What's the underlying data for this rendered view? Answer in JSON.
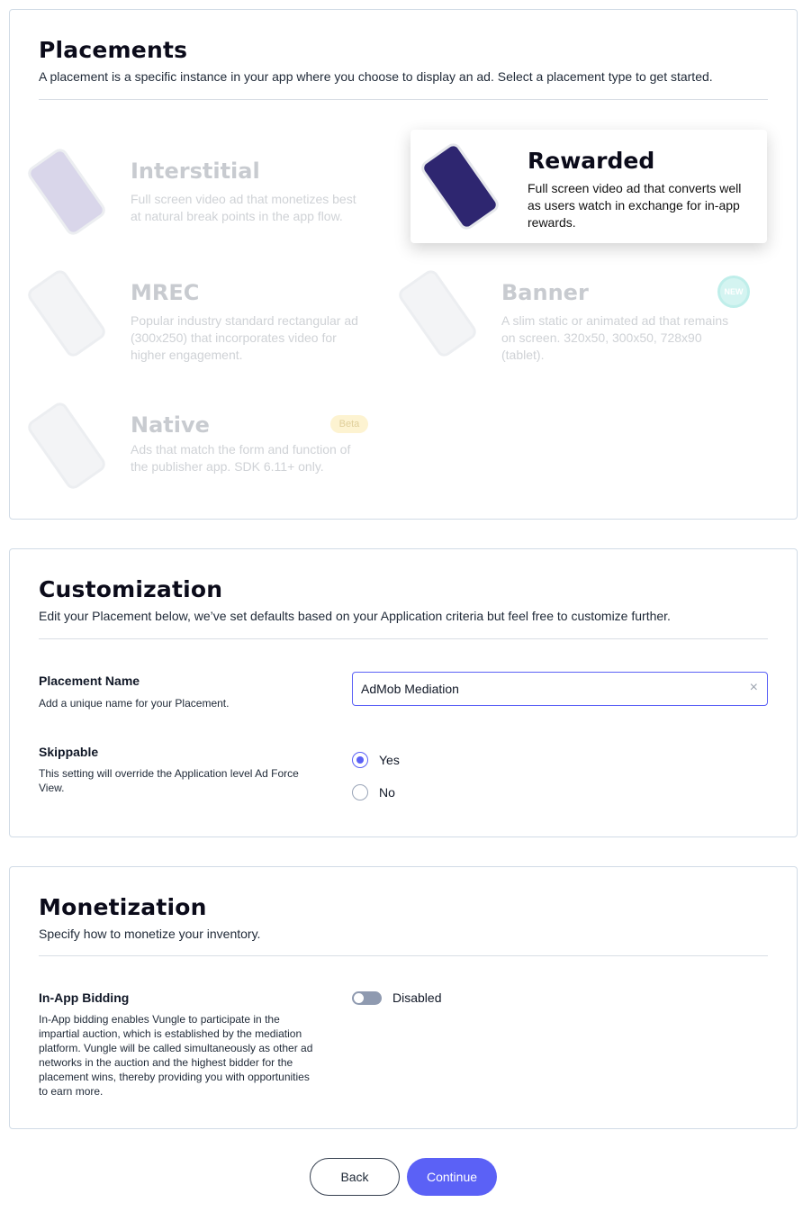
{
  "placements": {
    "title": "Placements",
    "subtitle": "A placement is a specific instance in your app where you choose to display an ad. Select a placement type to get started.",
    "types": [
      {
        "name": "Interstitial",
        "description": "Full screen video ad that monetizes best at natural break points in the app flow."
      },
      {
        "name": "Rewarded",
        "description": "Full screen video ad that converts well as users watch in exchange for in-app rewards.",
        "selected": true
      },
      {
        "name": "MREC",
        "description": "Popular industry standard rectangular ad (300x250) that incorporates video for higher engagement."
      },
      {
        "name": "Banner",
        "description": "A slim static or animated ad that remains on screen. 320x50, 300x50, 728x90 (tablet).",
        "badge": "NEW"
      },
      {
        "name": "Native",
        "description": "Ads that match the form and function of the publisher app. SDK 6.11+ only.",
        "badge": "Beta"
      }
    ]
  },
  "customization": {
    "title": "Customization",
    "subtitle": "Edit your Placement below, we’ve set defaults based on your Application criteria but feel free to customize further.",
    "placement_name_label": "Placement Name",
    "placement_name_hint": "Add a unique name for your Placement.",
    "placement_name_value": "AdMob Mediation",
    "skippable_label": "Skippable",
    "skippable_hint": "This setting will override the Application level Ad Force View.",
    "options": [
      "Yes",
      "No"
    ],
    "selected": "Yes"
  },
  "monetization": {
    "title": "Monetization",
    "subtitle": "Specify how to monetize your inventory.",
    "bidding_label": "In-App Bidding",
    "bidding_hint": "In-App bidding enables Vungle to participate in the impartial auction, which is established by the mediation platform. Vungle will be called simultaneously as other ad networks in the auction and the highest bidder for the placement wins, thereby providing you with opportunities to earn more.",
    "bidding_state": "Disabled",
    "bidding_enabled": false
  },
  "buttons": {
    "back": "Back",
    "continue": "Continue"
  },
  "colors": {
    "accent": "#5b61f6"
  }
}
